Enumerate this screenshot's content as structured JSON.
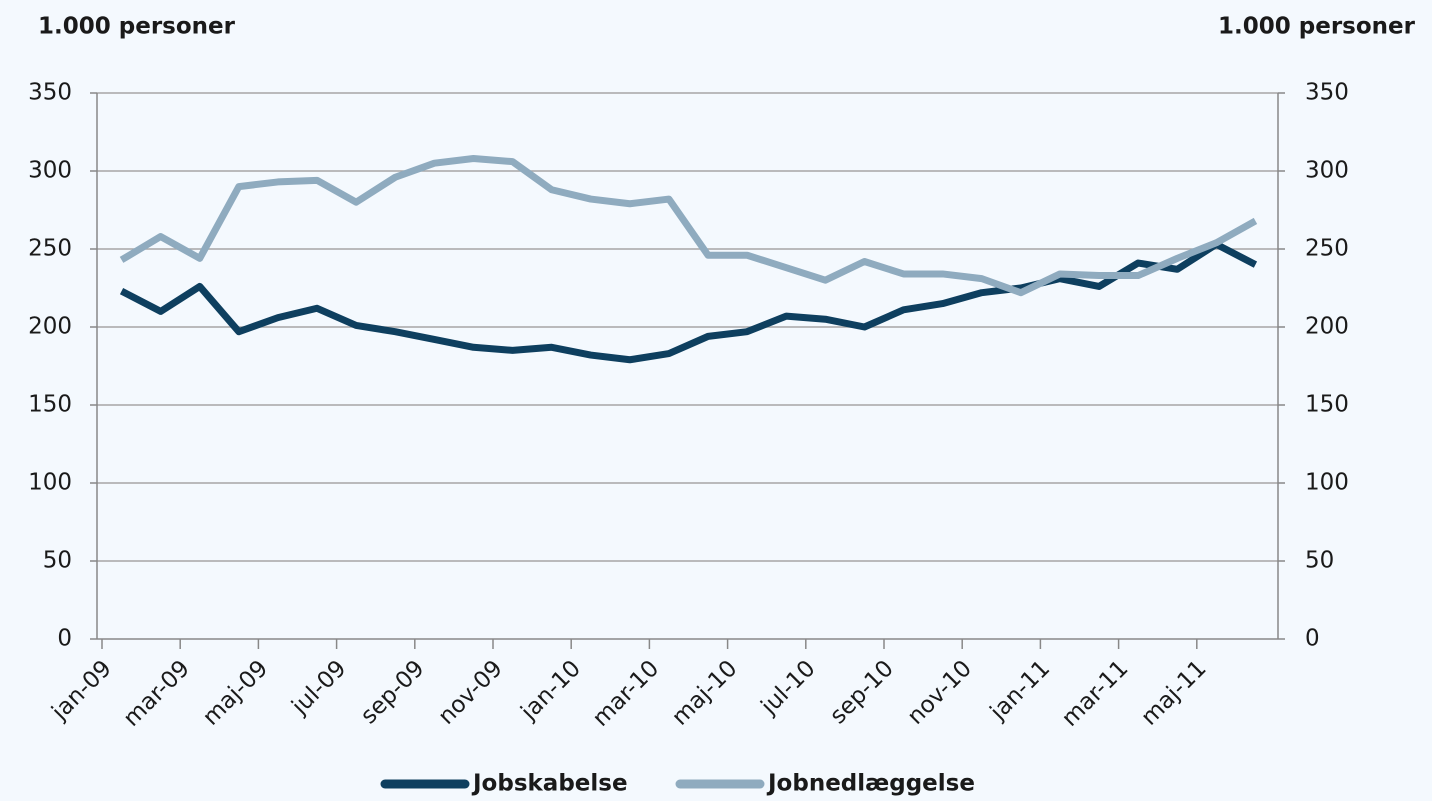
{
  "chart_data": {
    "type": "line",
    "y_label": "1.000 personer",
    "y2_label": "1.000 personer",
    "categories": [
      "jan-09",
      null,
      "mar-09",
      null,
      "maj-09",
      null,
      "jul-09",
      null,
      "sep-09",
      null,
      "nov-09",
      null,
      "jan-10",
      null,
      "mar-10",
      null,
      "maj-10",
      null,
      "jul-10",
      null,
      "sep-10",
      null,
      "nov-10",
      null,
      "jan-11",
      null,
      "mar-11",
      null,
      "maj-11",
      null
    ],
    "series": [
      {
        "name": "Jobskabelse",
        "color": "#0e3f5f",
        "values": [
          223,
          210,
          226,
          197,
          206,
          212,
          201,
          197,
          192,
          187,
          185,
          187,
          182,
          179,
          183,
          194,
          197,
          207,
          205,
          200,
          211,
          215,
          222,
          225,
          231,
          226,
          241,
          237,
          253,
          240
        ]
      },
      {
        "name": "Jobnedlæggelse",
        "color": "#8fabbf",
        "values": [
          243,
          258,
          244,
          290,
          293,
          294,
          280,
          296,
          305,
          308,
          306,
          288,
          282,
          279,
          282,
          246,
          246,
          238,
          230,
          242,
          234,
          234,
          231,
          222,
          234,
          233,
          233,
          244,
          254,
          268
        ]
      }
    ],
    "ylim": [
      0,
      350
    ],
    "yticks": [
      0,
      50,
      100,
      150,
      200,
      250,
      300,
      350
    ],
    "y2lim": [
      0,
      350
    ],
    "y2ticks": [
      0,
      50,
      100,
      150,
      200,
      250,
      300,
      350
    ],
    "grid": true,
    "legend": "bottom"
  }
}
